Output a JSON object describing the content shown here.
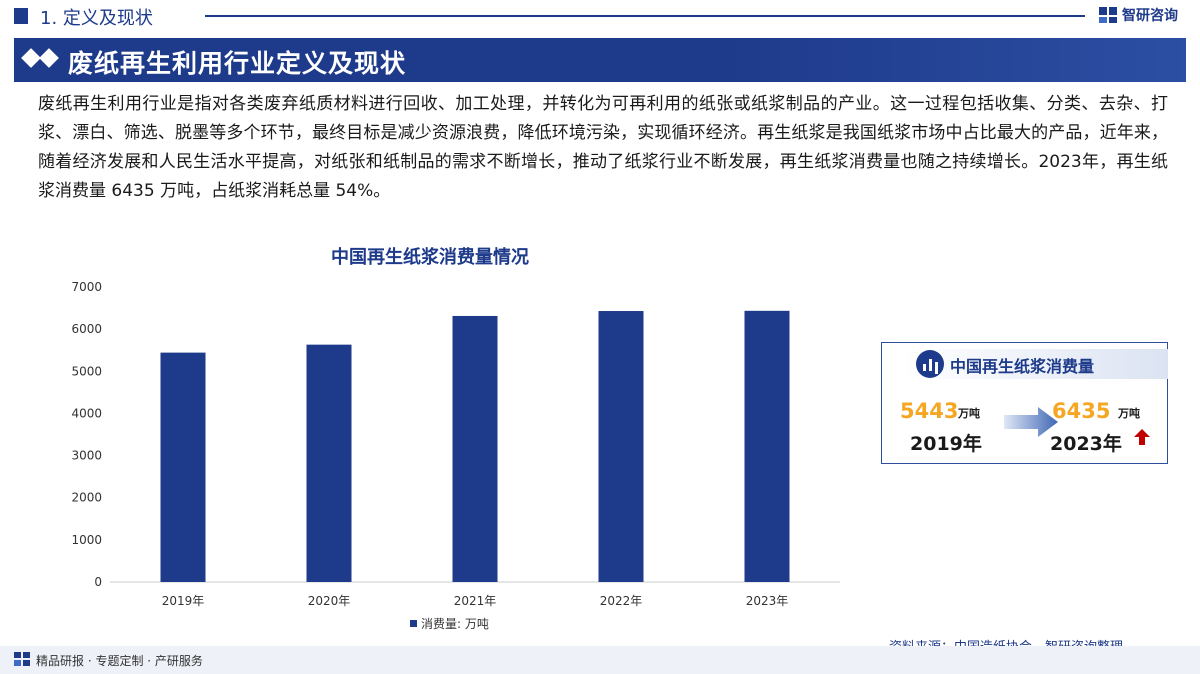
{
  "header": {
    "section_title": "1. 定义及现状",
    "brand": "智研咨询",
    "brand_color": "#1e3a8a"
  },
  "banner": {
    "title": "废纸再生利用行业定义及现状"
  },
  "intro": {
    "text": "废纸再生利用行业是指对各类废弃纸质材料进行回收、加工处理，并转化为可再利用的纸张或纸浆制品的产业。这一过程包括收集、分类、去杂、打浆、漂白、筛选、脱墨等多个环节，最终目标是减少资源浪费，降低环境污染，实现循环经济。再生纸浆是我国纸浆市场中占比最大的产品，近年来，随着经济发展和人民生活水平提高，对纸张和纸制品的需求不断增长，推动了纸浆行业不断发展，再生纸浆消费量也随之持续增长。2023年，再生纸浆消费量 6435 万吨，占纸浆消耗总量 54%。"
  },
  "chart_data": {
    "type": "bar",
    "title": "中国再生纸浆消费量情况",
    "categories": [
      "2019年",
      "2020年",
      "2021年",
      "2022年",
      "2023年"
    ],
    "series": [
      {
        "name": "消费量: 万吨",
        "values": [
          5443,
          5632,
          6313,
          6430,
          6435
        ],
        "color": "#1e3a8a"
      }
    ],
    "yticks": [
      "0",
      "1000",
      "2000",
      "3000",
      "4000",
      "5000",
      "6000",
      "7000"
    ],
    "ylim": [
      0,
      7000
    ],
    "grid": false,
    "legend_position": "bottom-center"
  },
  "side_card": {
    "title": "中国再生纸浆消费量",
    "start_value": "5443",
    "start_unit": "万吨",
    "start_year": "2019年",
    "end_value": "6435",
    "end_unit": "万吨",
    "end_year": "2023年",
    "trend_icon": "arrow-up-icon",
    "highlight_color": "#f5a623",
    "trend_color": "#c00000"
  },
  "source": {
    "text": "资料来源：中国造纸协会、智研咨询整理"
  },
  "footer": {
    "text": "精品研报 · 专题定制 · 产研服务"
  }
}
